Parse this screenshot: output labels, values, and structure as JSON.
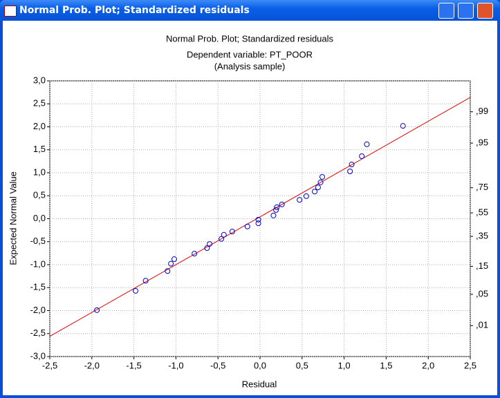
{
  "window": {
    "title": "Normal Prob. Plot; Standardized residuals"
  },
  "chart_data": {
    "type": "scatter",
    "title": "Normal Prob. Plot; Standardized residuals",
    "subtitle": "Dependent variable: PT_POOR",
    "subtitle2": "(Analysis sample)",
    "x_label": "Residual",
    "y_label": "Expected Normal Value",
    "grid": true,
    "xlim": [
      -2.5,
      2.5
    ],
    "ylim": [
      -3.0,
      3.0
    ],
    "xticks": [
      {
        "value": -2.5,
        "label": "-2,5"
      },
      {
        "value": -2.0,
        "label": "-2,0"
      },
      {
        "value": -1.5,
        "label": "-1,5"
      },
      {
        "value": -1.0,
        "label": "-1,0"
      },
      {
        "value": -0.5,
        "label": "-0,5"
      },
      {
        "value": 0,
        "label": "0,0"
      },
      {
        "value": 0.5,
        "label": "0,5"
      },
      {
        "value": 1.0,
        "label": "1,0"
      },
      {
        "value": 1.5,
        "label": "1,5"
      },
      {
        "value": 2.0,
        "label": "2,0"
      },
      {
        "value": 2.5,
        "label": "2,5"
      }
    ],
    "yticks": [
      {
        "value": -3.0,
        "label": "-3,0"
      },
      {
        "value": -2.5,
        "label": "-2,5"
      },
      {
        "value": -2.0,
        "label": "-2,0"
      },
      {
        "value": -1.5,
        "label": "-1,5"
      },
      {
        "value": -1.0,
        "label": "-1,0"
      },
      {
        "value": -0.5,
        "label": "-0,5"
      },
      {
        "value": 0,
        "label": "0,0"
      },
      {
        "value": 0.5,
        "label": "0,5"
      },
      {
        "value": 1.0,
        "label": "1,0"
      },
      {
        "value": 1.5,
        "label": "1,5"
      },
      {
        "value": 2.0,
        "label": "2,0"
      },
      {
        "value": 2.5,
        "label": "2,5"
      },
      {
        "value": 3.0,
        "label": "3,0"
      }
    ],
    "y2scale": "probit",
    "y2lim": [
      0.00135,
      0.99865
    ],
    "y2ticks": [
      {
        "value": 0.01,
        "label": ",01"
      },
      {
        "value": 0.05,
        "label": ",05"
      },
      {
        "value": 0.15,
        "label": ",15"
      },
      {
        "value": 0.35,
        "label": ",35"
      },
      {
        "value": 0.55,
        "label": ",55"
      },
      {
        "value": 0.75,
        "label": ",75"
      },
      {
        "value": 0.95,
        "label": ",95"
      },
      {
        "value": 0.99,
        "label": ",99"
      }
    ],
    "series": [
      {
        "color": "#0000c0",
        "x": [
          -1.94,
          -1.48,
          -1.36,
          -1.1,
          -1.06,
          -1.02,
          -0.78,
          -0.63,
          -0.6,
          -0.46,
          -0.43,
          -0.33,
          -0.15,
          -0.02,
          -0.02,
          0.16,
          0.19,
          0.2,
          0.26,
          0.47,
          0.55,
          0.65,
          0.69,
          0.72,
          0.74,
          1.07,
          1.09,
          1.21,
          1.27,
          1.7
        ],
        "values": [
          -1.99,
          -1.57,
          -1.35,
          -1.14,
          -0.98,
          -0.88,
          -0.76,
          -0.64,
          -0.55,
          -0.44,
          -0.35,
          -0.28,
          -0.17,
          -0.1,
          -0.02,
          0.07,
          0.19,
          0.25,
          0.31,
          0.41,
          0.49,
          0.59,
          0.68,
          0.79,
          0.91,
          1.03,
          1.18,
          1.36,
          1.62,
          2.02
        ]
      }
    ],
    "fit": {
      "slope": 1.04,
      "intercept": 0.04,
      "color": "#e00000"
    }
  }
}
